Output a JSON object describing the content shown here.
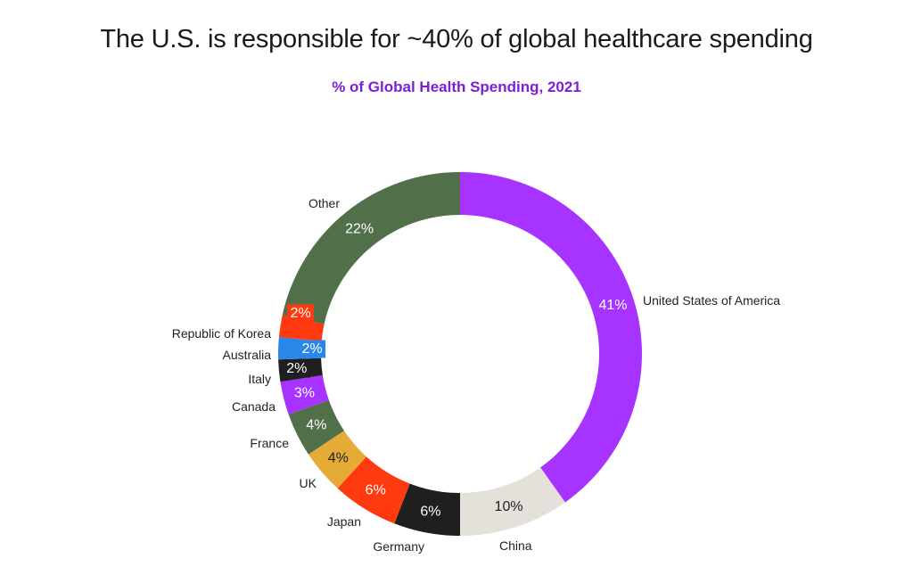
{
  "chart_data": {
    "type": "pie",
    "subtype": "donut",
    "title": "The U.S. is responsible for ~40% of global healthcare spending",
    "subtitle": "% of Global Health Spending, 2021",
    "slices": [
      {
        "name": "United States of America",
        "value": 41,
        "label": "41%",
        "color": "#a633ff",
        "text_color": "#ffffff"
      },
      {
        "name": "China",
        "value": 10,
        "label": "10%",
        "color": "#e4e0da",
        "text_color": "#222222"
      },
      {
        "name": "Germany",
        "value": 6,
        "label": "6%",
        "color": "#1f1f1f",
        "text_color": "#ffffff"
      },
      {
        "name": "Japan",
        "value": 6,
        "label": "6%",
        "color": "#ff3a10",
        "text_color": "#ffffff"
      },
      {
        "name": "UK",
        "value": 4,
        "label": "4%",
        "color": "#e6aa37",
        "text_color": "#222222"
      },
      {
        "name": "France",
        "value": 4,
        "label": "4%",
        "color": "#51704a",
        "text_color": "#ffffff"
      },
      {
        "name": "Canada",
        "value": 3,
        "label": "3%",
        "color": "#a633ff",
        "text_color": "#ffffff"
      },
      {
        "name": "Italy",
        "value": 2,
        "label": "2%",
        "color": "#1f1f1f",
        "text_color": "#ffffff"
      },
      {
        "name": "Australia",
        "value": 2,
        "label": "2%",
        "color": "#2a87e8",
        "text_color": "#ffffff"
      },
      {
        "name": "Republic of Korea",
        "value": 2,
        "label": "2%",
        "color": "#ff3a10",
        "text_color": "#ffffff"
      },
      {
        "name": "Other",
        "value": 22,
        "label": "22%",
        "color": "#51704a",
        "text_color": "#ffffff"
      }
    ]
  }
}
